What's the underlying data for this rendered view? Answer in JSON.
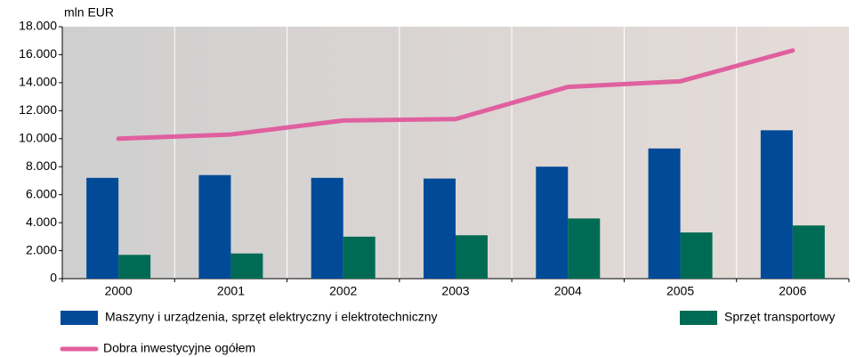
{
  "chart_data": {
    "type": "bar_line",
    "y_label": "mln EUR",
    "categories": [
      "2000",
      "2001",
      "2002",
      "2003",
      "2004",
      "2005",
      "2006"
    ],
    "series": [
      {
        "name": "Maszyny i urządzenia, sprzęt elektryczny i elektrotechniczny",
        "type": "bar",
        "color": "#004a98",
        "values": [
          7200,
          7400,
          7200,
          7150,
          8000,
          9300,
          10600
        ]
      },
      {
        "name": "Sprzęt transportowy",
        "type": "bar",
        "color": "#006b54",
        "values": [
          1700,
          1800,
          3000,
          3100,
          4300,
          3300,
          3800
        ]
      },
      {
        "name": "Dobra inwestycyjne ogółem",
        "type": "line",
        "color": "#e0609f",
        "values": [
          10000,
          10300,
          11300,
          11400,
          13700,
          14100,
          16300
        ]
      }
    ],
    "ylim": [
      0,
      18000
    ],
    "yticks": [
      0,
      {
        "value": 2000,
        "label": "2.000"
      },
      {
        "value": 4000,
        "label": "4.000"
      },
      {
        "value": 6000,
        "label": "6.000"
      },
      {
        "value": 8000,
        "label": "8.000"
      },
      {
        "value": 10000,
        "label": "10.000"
      },
      {
        "value": 12000,
        "label": "12.000"
      },
      {
        "value": 14000,
        "label": "14.000"
      },
      {
        "value": 16000,
        "label": "16.000"
      },
      {
        "value": 18000,
        "label": "18.000"
      }
    ],
    "grid": true
  }
}
